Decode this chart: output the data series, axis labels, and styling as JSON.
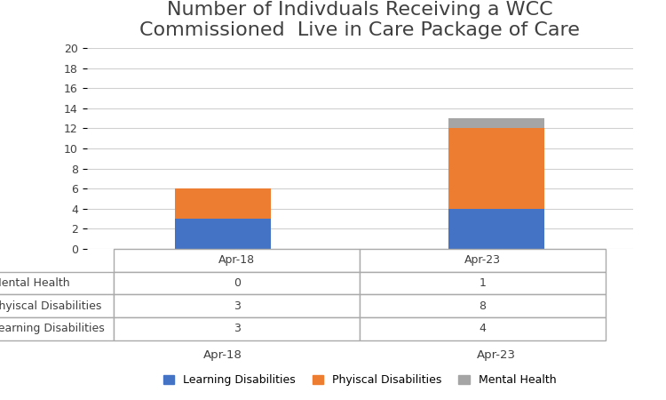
{
  "title": "Number of Indivduals Receiving a WCC\nCommissioned  Live in Care Package of Care",
  "categories": [
    "Apr-18",
    "Apr-23"
  ],
  "series": {
    "Learning Disabilities": [
      3,
      4
    ],
    "Phyiscal Disabilities": [
      3,
      8
    ],
    "Mental Health": [
      0,
      1
    ]
  },
  "colors": {
    "Learning Disabilities": "#4472c4",
    "Phyiscal Disabilities": "#ed7d31",
    "Mental Health": "#a5a5a5"
  },
  "ylim": [
    0,
    20
  ],
  "yticks": [
    0,
    2,
    4,
    6,
    8,
    10,
    12,
    14,
    16,
    18,
    20
  ],
  "table_rows": [
    "Mental Health",
    "Phyiscal Disabilities",
    "Learning Disabilities"
  ],
  "table_data": {
    "Mental Health": [
      0,
      1
    ],
    "Phyiscal Disabilities": [
      3,
      8
    ],
    "Learning Disabilities": [
      3,
      4
    ]
  },
  "background_color": "#ffffff",
  "title_fontsize": 16,
  "bar_width": 0.35
}
